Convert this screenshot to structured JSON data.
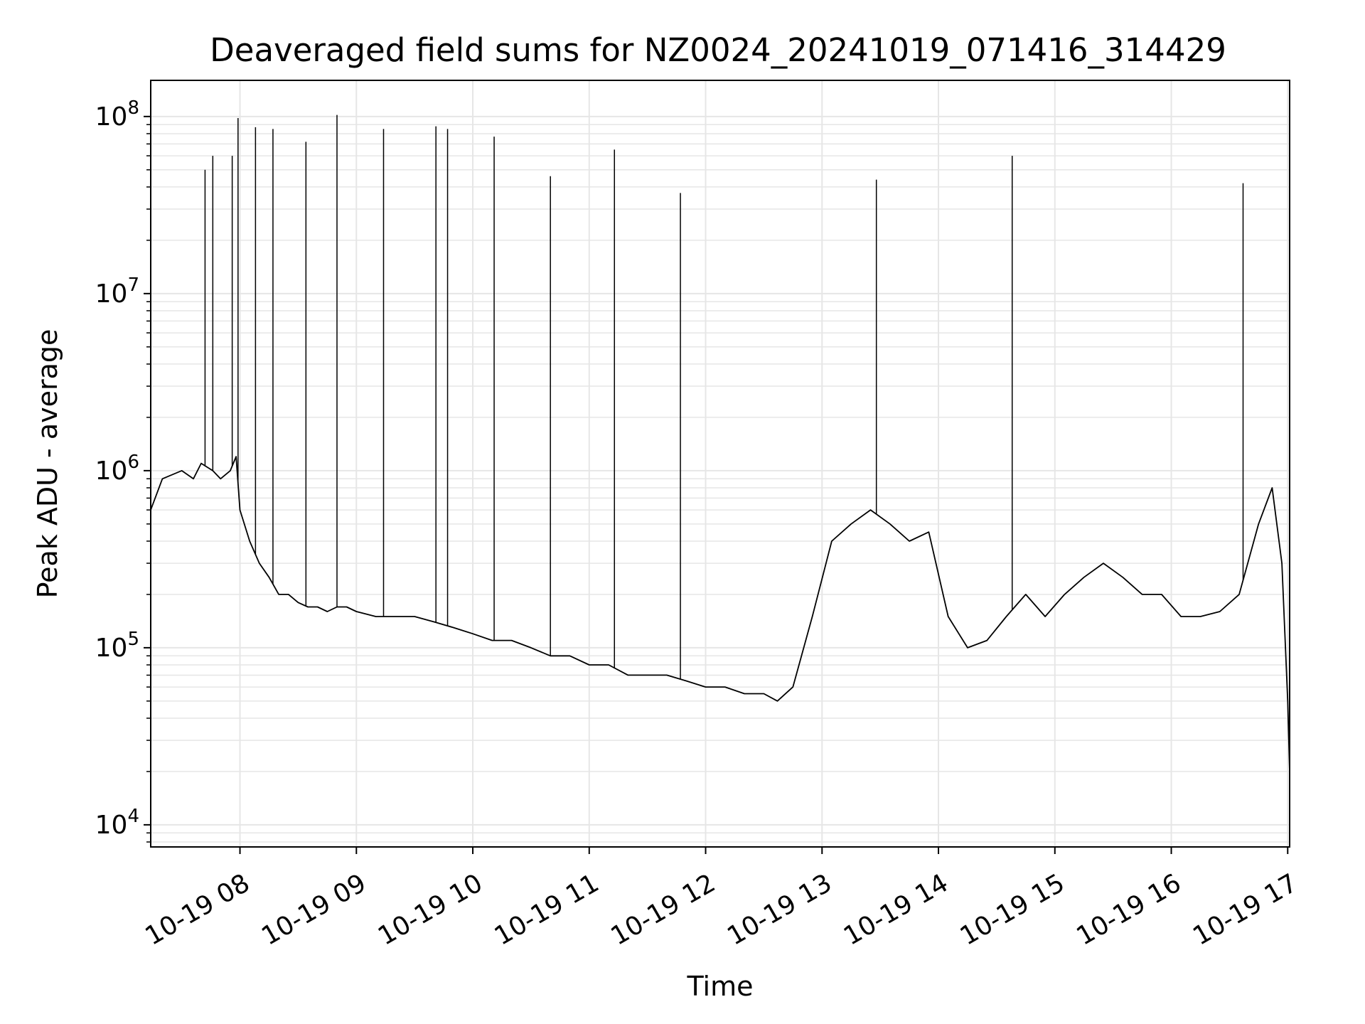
{
  "chart_data": {
    "type": "line",
    "title": "Deaveraged field sums for NZ0024_20241019_071416_314429",
    "xlabel": "Time",
    "ylabel": "Peak ADU - average",
    "y_scale": "log",
    "ylim": [
      7500,
      160000000
    ],
    "xlim": [
      "2024-10-19 07:14",
      "2024-10-19 17:01"
    ],
    "grid": true,
    "line_color": "#000000",
    "grid_color": "#e6e6e6",
    "x_ticks": [
      {
        "value": "2024-10-19 08:00",
        "label": "10-19 08"
      },
      {
        "value": "2024-10-19 09:00",
        "label": "10-19 09"
      },
      {
        "value": "2024-10-19 10:00",
        "label": "10-19 10"
      },
      {
        "value": "2024-10-19 11:00",
        "label": "10-19 11"
      },
      {
        "value": "2024-10-19 12:00",
        "label": "10-19 12"
      },
      {
        "value": "2024-10-19 13:00",
        "label": "10-19 13"
      },
      {
        "value": "2024-10-19 14:00",
        "label": "10-19 14"
      },
      {
        "value": "2024-10-19 15:00",
        "label": "10-19 15"
      },
      {
        "value": "2024-10-19 16:00",
        "label": "10-19 16"
      },
      {
        "value": "2024-10-19 17:00",
        "label": "10-19 17"
      }
    ],
    "y_ticks": [
      {
        "value": 10000,
        "base": "10",
        "exp": "4"
      },
      {
        "value": 100000,
        "base": "10",
        "exp": "5"
      },
      {
        "value": 1000000,
        "base": "10",
        "exp": "6"
      },
      {
        "value": 10000000,
        "base": "10",
        "exp": "7"
      },
      {
        "value": 100000000,
        "base": "10",
        "exp": "8"
      }
    ],
    "series": [
      {
        "x": [
          "2024-10-19 07:14",
          "2024-10-19 07:20",
          "2024-10-19 07:30",
          "2024-10-19 07:36",
          "2024-10-19 07:40",
          "2024-10-19 07:46",
          "2024-10-19 07:50",
          "2024-10-19 07:55",
          "2024-10-19 07:58",
          "2024-10-19 08:00",
          "2024-10-19 08:05",
          "2024-10-19 08:10",
          "2024-10-19 08:15",
          "2024-10-19 08:20",
          "2024-10-19 08:25",
          "2024-10-19 08:30",
          "2024-10-19 08:35",
          "2024-10-19 08:40",
          "2024-10-19 08:45",
          "2024-10-19 08:50",
          "2024-10-19 08:55",
          "2024-10-19 09:00",
          "2024-10-19 09:10",
          "2024-10-19 09:20",
          "2024-10-19 09:30",
          "2024-10-19 09:40",
          "2024-10-19 09:50",
          "2024-10-19 10:00",
          "2024-10-19 10:10",
          "2024-10-19 10:20",
          "2024-10-19 10:30",
          "2024-10-19 10:40",
          "2024-10-19 10:50",
          "2024-10-19 11:00",
          "2024-10-19 11:10",
          "2024-10-19 11:20",
          "2024-10-19 11:30",
          "2024-10-19 11:40",
          "2024-10-19 11:50",
          "2024-10-19 12:00",
          "2024-10-19 12:10",
          "2024-10-19 12:20",
          "2024-10-19 12:30",
          "2024-10-19 12:37",
          "2024-10-19 12:45",
          "2024-10-19 12:55",
          "2024-10-19 13:05",
          "2024-10-19 13:15",
          "2024-10-19 13:25",
          "2024-10-19 13:35",
          "2024-10-19 13:45",
          "2024-10-19 13:55",
          "2024-10-19 14:05",
          "2024-10-19 14:15",
          "2024-10-19 14:25",
          "2024-10-19 14:35",
          "2024-10-19 14:45",
          "2024-10-19 14:55",
          "2024-10-19 15:05",
          "2024-10-19 15:15",
          "2024-10-19 15:25",
          "2024-10-19 15:35",
          "2024-10-19 15:45",
          "2024-10-19 15:55",
          "2024-10-19 16:05",
          "2024-10-19 16:15",
          "2024-10-19 16:25",
          "2024-10-19 16:35",
          "2024-10-19 16:45",
          "2024-10-19 16:52",
          "2024-10-19 16:57",
          "2024-10-19 17:00",
          "2024-10-19 17:01"
        ],
        "y": [
          600000,
          900000,
          1000000,
          900000,
          1100000,
          1000000,
          900000,
          1000000,
          1200000,
          600000,
          400000,
          300000,
          250000,
          200000,
          200000,
          180000,
          170000,
          170000,
          160000,
          170000,
          170000,
          160000,
          150000,
          150000,
          150000,
          140000,
          130000,
          120000,
          110000,
          110000,
          100000,
          90000,
          90000,
          80000,
          80000,
          70000,
          70000,
          70000,
          65000,
          60000,
          60000,
          55000,
          55000,
          50000,
          60000,
          150000,
          400000,
          500000,
          600000,
          500000,
          400000,
          450000,
          150000,
          100000,
          110000,
          150000,
          200000,
          150000,
          200000,
          250000,
          300000,
          250000,
          200000,
          200000,
          150000,
          150000,
          160000,
          200000,
          500000,
          800000,
          300000,
          50000,
          20000
        ]
      }
    ],
    "spikes": [
      {
        "x": "2024-10-19 07:42",
        "y": 50000000
      },
      {
        "x": "2024-10-19 07:46",
        "y": 60000000
      },
      {
        "x": "2024-10-19 07:56",
        "y": 60000000
      },
      {
        "x": "2024-10-19 07:59",
        "y": 98000000
      },
      {
        "x": "2024-10-19 08:08",
        "y": 87000000
      },
      {
        "x": "2024-10-19 08:17",
        "y": 85000000
      },
      {
        "x": "2024-10-19 08:34",
        "y": 72000000
      },
      {
        "x": "2024-10-19 08:50",
        "y": 102000000
      },
      {
        "x": "2024-10-19 09:14",
        "y": 85000000
      },
      {
        "x": "2024-10-19 09:41",
        "y": 88000000
      },
      {
        "x": "2024-10-19 09:47",
        "y": 85000000
      },
      {
        "x": "2024-10-19 10:11",
        "y": 77000000
      },
      {
        "x": "2024-10-19 10:40",
        "y": 46000000
      },
      {
        "x": "2024-10-19 11:13",
        "y": 65000000
      },
      {
        "x": "2024-10-19 11:47",
        "y": 37000000
      },
      {
        "x": "2024-10-19 13:28",
        "y": 44000000
      },
      {
        "x": "2024-10-19 14:38",
        "y": 60000000
      },
      {
        "x": "2024-10-19 16:37",
        "y": 42000000
      }
    ]
  }
}
